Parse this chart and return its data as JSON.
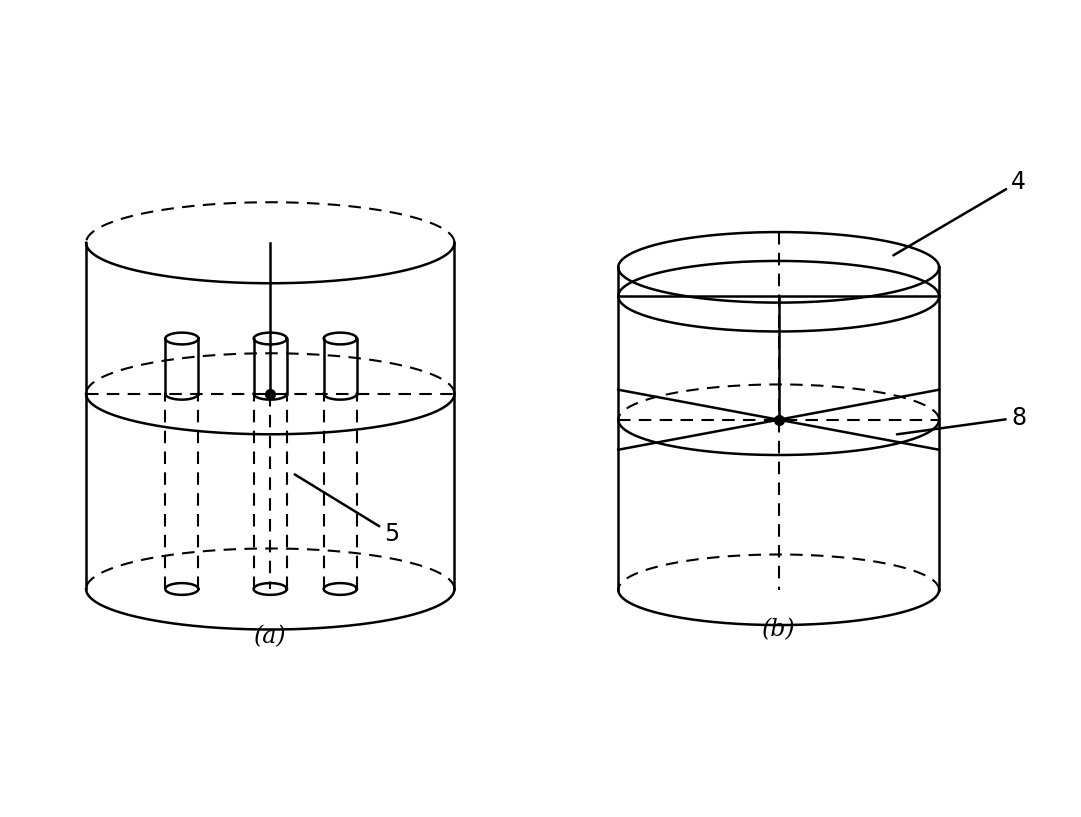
{
  "bg_color": "#ffffff",
  "line_color": "#000000",
  "dashed_color": "#000000",
  "label_a": "(a)",
  "label_b": "(b)",
  "label_4": "4",
  "label_5": "5",
  "label_8": "8"
}
